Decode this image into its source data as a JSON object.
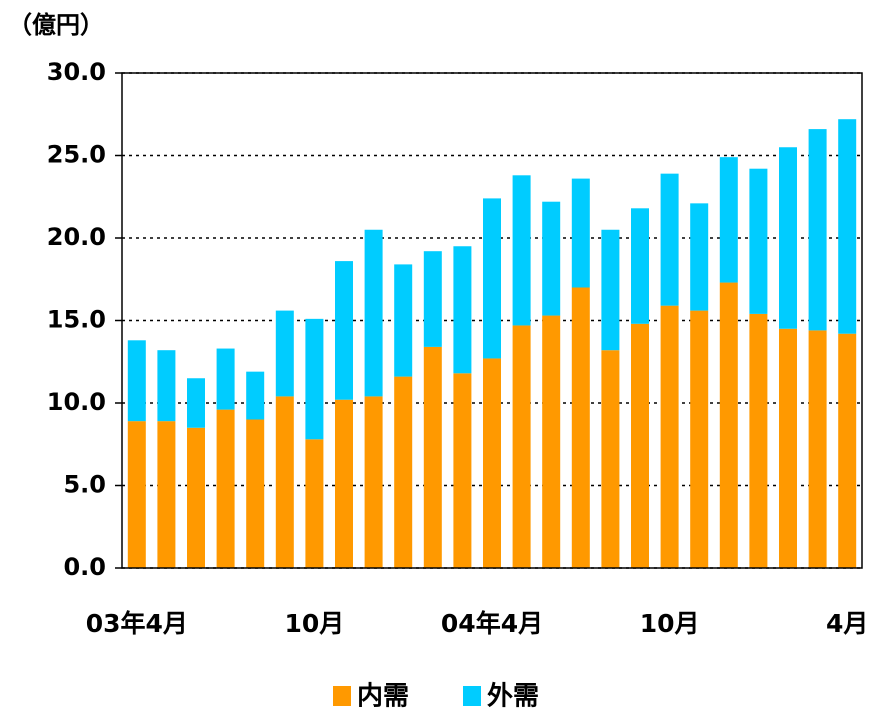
{
  "chart_data": {
    "type": "stacked_bar",
    "y_axis_label": "（億円）",
    "categories": [
      "03年4月",
      null,
      null,
      null,
      null,
      null,
      "10月",
      null,
      null,
      null,
      null,
      null,
      "04年4月",
      null,
      null,
      null,
      null,
      null,
      "10月",
      null,
      null,
      null,
      null,
      null,
      "4月"
    ],
    "series": [
      {
        "name": "内需",
        "color": "#ff9900",
        "values": [
          8.9,
          8.9,
          8.5,
          9.6,
          9.0,
          10.4,
          7.8,
          10.2,
          10.4,
          11.6,
          13.4,
          11.8,
          12.7,
          14.7,
          15.3,
          17.0,
          13.2,
          14.8,
          15.9,
          15.6,
          17.3,
          15.4,
          14.5,
          14.4,
          14.2
        ]
      },
      {
        "name": "外需",
        "color": "#00ccff",
        "values": [
          4.9,
          4.3,
          3.0,
          3.7,
          2.9,
          5.2,
          7.3,
          8.4,
          10.1,
          6.8,
          5.8,
          7.7,
          9.7,
          9.1,
          6.9,
          6.6,
          7.3,
          7.0,
          8.0,
          6.5,
          7.6,
          8.8,
          11.0,
          12.2,
          13.0
        ]
      }
    ],
    "ylim": [
      0,
      30
    ],
    "yticks": [
      {
        "value": 0,
        "label": "0.0"
      },
      {
        "value": 5,
        "label": "5.0"
      },
      {
        "value": 10,
        "label": "10.0"
      },
      {
        "value": 15,
        "label": "15.0"
      },
      {
        "value": 20,
        "label": "20.0"
      },
      {
        "value": 25,
        "label": "25.0"
      },
      {
        "value": 30,
        "label": "30.0"
      }
    ],
    "grid": true,
    "legend": "bottom"
  }
}
